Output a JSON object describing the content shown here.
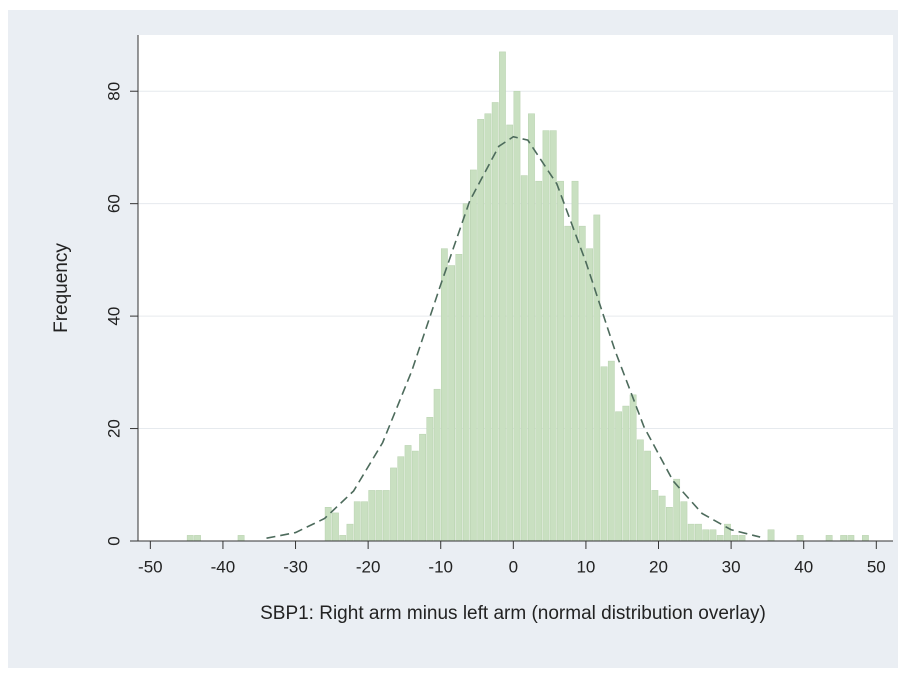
{
  "chart_data": {
    "type": "histogram",
    "x_label": "SBP1: Right arm minus left arm (normal distribution overlay)",
    "y_label": "Frequency",
    "bins": [
      -50,
      -49,
      -48,
      -47,
      -46,
      -45,
      -44,
      -43,
      -42,
      -41,
      -40,
      -39,
      -38,
      -37,
      -36,
      -35,
      -34,
      -33,
      -32,
      -31,
      -30,
      -29,
      -28,
      -27,
      -26,
      -25,
      -24,
      -23,
      -22,
      -21,
      -20,
      -19,
      -18,
      -17,
      -16,
      -15,
      -14,
      -13,
      -12,
      -11,
      -10,
      -9,
      -8,
      -7,
      -6,
      -5,
      -4,
      -3,
      -2,
      -1,
      0,
      1,
      2,
      3,
      4,
      5,
      6,
      7,
      8,
      9,
      10,
      11,
      12,
      13,
      14,
      15,
      16,
      17,
      18,
      19,
      20,
      21,
      22,
      23,
      24,
      25,
      26,
      27,
      28,
      29,
      30,
      31,
      32,
      33,
      34,
      35,
      36,
      37,
      38,
      39,
      40,
      41,
      42,
      43,
      44,
      45,
      46,
      47,
      48,
      49,
      50
    ],
    "values": [
      0,
      0,
      0,
      0,
      0,
      1,
      1,
      0,
      0,
      0,
      0,
      0,
      1,
      0,
      0,
      0,
      0,
      0,
      0,
      0,
      0,
      0,
      0,
      0,
      6,
      5,
      1,
      3,
      7,
      7,
      9,
      9,
      9,
      13,
      15,
      17,
      16,
      19,
      22,
      27,
      52,
      49,
      51,
      60,
      66,
      75,
      76,
      78,
      87,
      74,
      80,
      65,
      76,
      64,
      73,
      73,
      64,
      56,
      64,
      56,
      52,
      58,
      31,
      32,
      23,
      24,
      26,
      18,
      16,
      9,
      8,
      6,
      11,
      7,
      3,
      3,
      2,
      2,
      1,
      3,
      1,
      1,
      0,
      0,
      0,
      2,
      0,
      0,
      0,
      1,
      0,
      0,
      0,
      1,
      0,
      1,
      1,
      0,
      1,
      0
    ],
    "color": "#c9e0c1",
    "curve": {
      "x": [
        -34,
        -30,
        -26,
        -22,
        -18,
        -14,
        -10,
        -6,
        -2,
        0,
        2,
        6,
        10,
        14,
        18,
        22,
        26,
        30,
        34
      ],
      "values": [
        0.5,
        1.5,
        4.0,
        8.9,
        17.5,
        30.2,
        45.6,
        60.5,
        70.2,
        71.9,
        71.3,
        63.5,
        49.6,
        33.9,
        20.3,
        10.7,
        4.9,
        2.0,
        0.7
      ],
      "color": "#4d6b5c"
    },
    "xlim": [
      -51.7,
      52.3
    ],
    "ylim": [
      0,
      90
    ],
    "xticks": [
      -50,
      -40,
      -30,
      -20,
      -10,
      0,
      10,
      20,
      30,
      40,
      50
    ],
    "yticks": [
      0,
      20,
      40,
      60,
      80
    ],
    "grid": true
  }
}
